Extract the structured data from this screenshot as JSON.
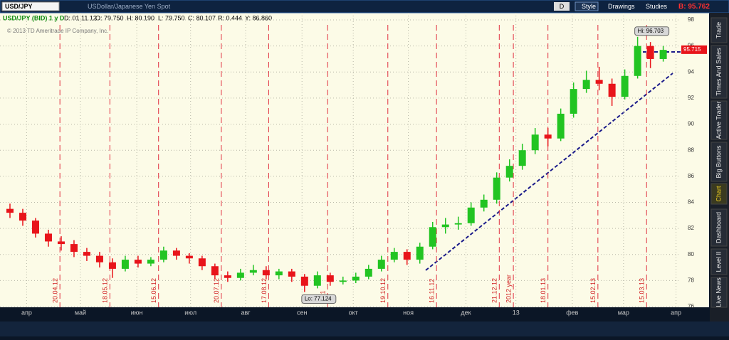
{
  "toolbar": {
    "symbol": "USD/JPY",
    "description": "USDollar/Japanese Yen Spot",
    "aggregation": "D",
    "buttons": [
      "Style",
      "Drawings",
      "Studies"
    ],
    "bid": "B: 95.762"
  },
  "header": {
    "study": "USD/JPY (BID) 1 y D",
    "fields": [
      "D: 01.11.12",
      "O: 79.750",
      "H: 80.190",
      "L: 79.750",
      "C: 80.107",
      "R: 0.444",
      "Y: 86.860"
    ],
    "copyright": "© 2013 TD Ameritrade IP Company, Inc."
  },
  "sidebar": {
    "tabs": [
      "Trade",
      "Times And Sales",
      "Active Trader",
      "Big Buttons",
      "Chart",
      "Dashboard",
      "Level II",
      "Live News"
    ],
    "active": "Chart"
  },
  "chart_data": {
    "type": "candlestick",
    "up_color": "#22c422",
    "down_color": "#e8141a",
    "open": [
      83.5,
      83.2,
      82.6,
      81.6,
      81.0,
      80.8,
      80.2,
      79.9,
      79.4,
      78.9,
      79.6,
      79.3,
      79.6,
      80.3,
      79.9,
      79.7,
      79.1,
      78.4,
      78.2,
      78.6,
      78.8,
      78.4,
      78.7,
      78.3,
      77.6,
      78.4,
      77.9,
      78.0,
      78.3,
      78.9,
      79.6,
      80.2,
      79.6,
      80.6,
      82.1,
      82.3,
      82.4,
      83.6,
      84.2,
      85.9,
      86.8,
      88.0,
      89.2,
      88.9,
      90.8,
      92.7,
      93.4,
      93.1,
      92.1,
      93.7,
      96.0,
      95.0
    ],
    "high": [
      83.9,
      83.5,
      82.8,
      81.9,
      81.4,
      81.1,
      80.5,
      80.2,
      79.7,
      79.9,
      79.9,
      79.8,
      80.6,
      80.5,
      80.1,
      79.9,
      79.3,
      78.7,
      78.9,
      79.2,
      79.1,
      78.9,
      78.9,
      78.5,
      78.7,
      78.6,
      78.3,
      78.6,
      79.2,
      79.9,
      80.5,
      80.4,
      80.9,
      82.5,
      82.8,
      82.9,
      84.0,
      84.6,
      86.3,
      87.3,
      88.5,
      89.7,
      89.7,
      91.2,
      93.2,
      94.1,
      94.4,
      93.5,
      94.2,
      96.7,
      96.3,
      96.0
    ],
    "low": [
      82.8,
      82.2,
      81.3,
      80.6,
      80.3,
      79.8,
      79.5,
      79.0,
      78.2,
      78.7,
      79.0,
      79.1,
      79.4,
      79.6,
      79.3,
      78.8,
      78.1,
      77.9,
      78.0,
      78.4,
      78.1,
      78.1,
      77.9,
      77.12,
      77.4,
      77.6,
      77.7,
      77.8,
      78.1,
      78.7,
      79.4,
      79.2,
      79.3,
      80.4,
      81.6,
      81.9,
      82.2,
      83.3,
      83.9,
      85.6,
      86.5,
      87.7,
      88.3,
      88.7,
      90.5,
      92.4,
      92.6,
      91.4,
      91.9,
      93.5,
      94.3,
      94.8
    ],
    "close": [
      83.2,
      82.6,
      81.6,
      81.0,
      80.8,
      80.2,
      79.9,
      79.4,
      78.9,
      79.6,
      79.3,
      79.6,
      80.3,
      79.9,
      79.7,
      79.1,
      78.4,
      78.2,
      78.6,
      78.8,
      78.4,
      78.7,
      78.3,
      77.6,
      78.4,
      77.9,
      78.0,
      78.3,
      78.9,
      79.6,
      80.2,
      79.6,
      80.6,
      82.1,
      82.3,
      82.4,
      83.6,
      84.2,
      85.9,
      86.8,
      88.0,
      89.2,
      88.9,
      90.8,
      92.7,
      93.4,
      93.1,
      92.1,
      93.7,
      96.0,
      95.0,
      95.7
    ],
    "xlim": [
      0,
      52.8
    ],
    "xticks": [
      {
        "value": 1.8,
        "label": "апр"
      },
      {
        "value": 6.0,
        "label": "май"
      },
      {
        "value": 10.4,
        "label": "июн"
      },
      {
        "value": 14.6,
        "label": "июл"
      },
      {
        "value": 18.9,
        "label": "авг"
      },
      {
        "value": 23.3,
        "label": "сен"
      },
      {
        "value": 27.3,
        "label": "окт"
      },
      {
        "value": 31.6,
        "label": "ноя"
      },
      {
        "value": 36.1,
        "label": "дек"
      },
      {
        "value": 40.0,
        "label": "13"
      },
      {
        "value": 44.4,
        "label": "фев"
      },
      {
        "value": 48.4,
        "label": "мар"
      },
      {
        "value": 52.5,
        "label": "апр"
      }
    ],
    "events": [
      {
        "value": 4.4,
        "label": "20.04.12"
      },
      {
        "value": 8.3,
        "label": "18.05.12"
      },
      {
        "value": 12.1,
        "label": "15.06.12"
      },
      {
        "value": 17.0,
        "label": "20.07.12"
      },
      {
        "value": 20.7,
        "label": "17.08.12"
      },
      {
        "value": 25.3,
        "label": "09.1"
      },
      {
        "value": 30.0,
        "label": "19.10.12"
      },
      {
        "value": 33.8,
        "label": "16.11.12"
      },
      {
        "value": 38.7,
        "label": "21.12.12"
      },
      {
        "value": 39.8,
        "label": "2012 year"
      },
      {
        "value": 42.5,
        "label": "18.01.13"
      },
      {
        "value": 46.4,
        "label": "15.02.13"
      },
      {
        "value": 50.2,
        "label": "15.03.13"
      }
    ],
    "ylim": [
      75.8,
      98.3
    ],
    "yticks": [
      76,
      78,
      80,
      82,
      84,
      86,
      88,
      90,
      92,
      94,
      96,
      98
    ],
    "grid": true,
    "annotations": [
      {
        "label": "Hi: 96.703",
        "value": 96.703,
        "index": 49
      },
      {
        "label": "Lo: 77.124",
        "value": 77.124,
        "index": 23
      }
    ],
    "last": {
      "label": "95.715",
      "value": 95.715
    }
  }
}
